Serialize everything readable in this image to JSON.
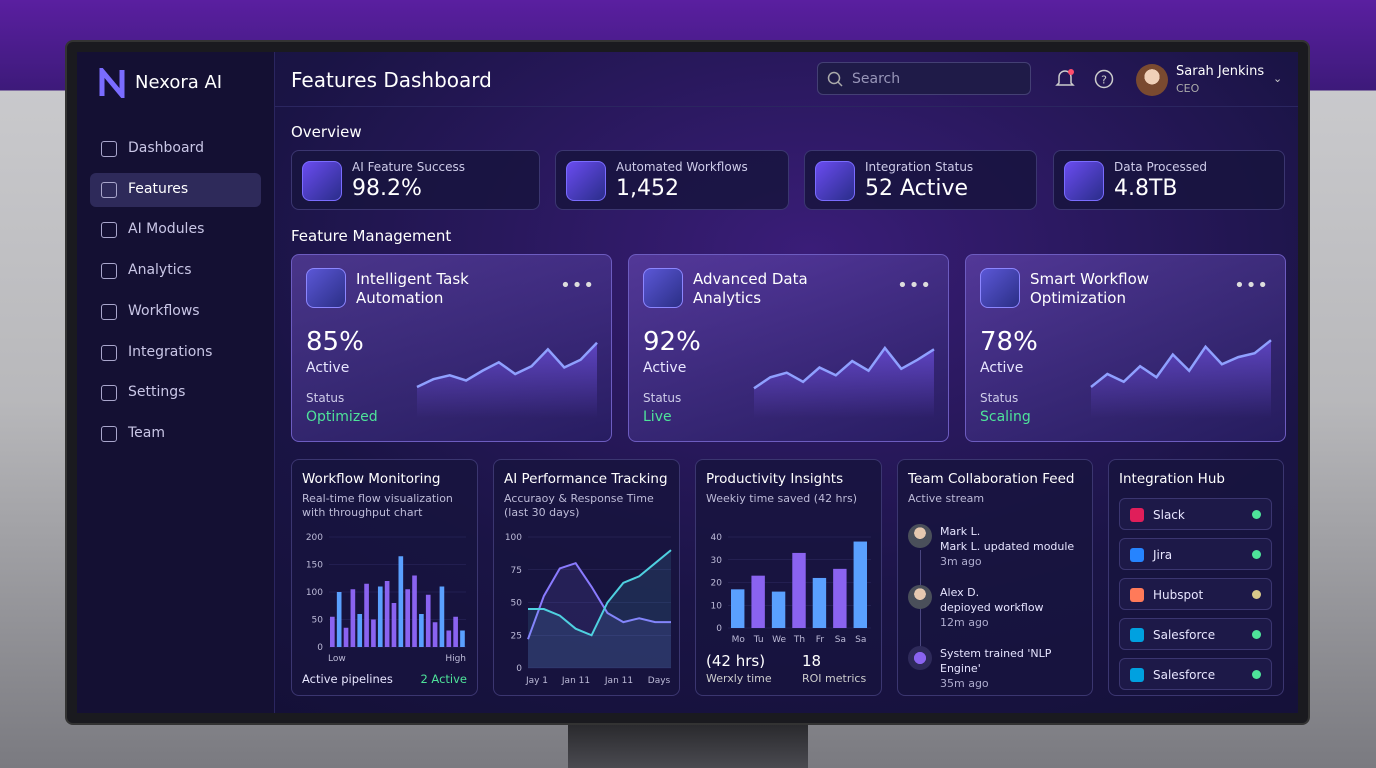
{
  "brand": "Nexora AI",
  "header": {
    "title": "Features Dashboard",
    "search": "Search",
    "user": {
      "name": "Sarah Jenkins",
      "role": "CEO"
    }
  },
  "nav": [
    "Dashboard",
    "Features",
    "AI Modules",
    "Analytics",
    "Workflows",
    "Integrations",
    "Settings",
    "Team"
  ],
  "overview": {
    "title": "Overview",
    "cards": [
      {
        "label": "AI Feature Success",
        "value": "98.2%"
      },
      {
        "label": "Automated Workflows",
        "value": "1,452"
      },
      {
        "label": "Integration Status",
        "value": "52 Active"
      },
      {
        "label": "Data Processed",
        "value": "4.8TB"
      }
    ]
  },
  "features": {
    "title": "Feature Management",
    "ylim": [
      0,
      100
    ],
    "cards": [
      {
        "title": "Intelligent Task Automation",
        "percent": "85%",
        "state": "Active",
        "status_label": "Status",
        "status": "Optimized",
        "trend": [
          20,
          32,
          38,
          30,
          45,
          58,
          40,
          52,
          78,
          50,
          62,
          88
        ]
      },
      {
        "title": "Advanced Data Analytics",
        "percent": "92%",
        "state": "Active",
        "status_label": "Status",
        "status": "Live",
        "trend": [
          18,
          35,
          42,
          28,
          50,
          38,
          60,
          45,
          80,
          48,
          62,
          78
        ]
      },
      {
        "title": "Smart Workflow Optimization",
        "percent": "78%",
        "state": "Active",
        "status_label": "Status",
        "status": "Scaling",
        "trend": [
          20,
          40,
          28,
          52,
          35,
          70,
          45,
          82,
          55,
          66,
          72,
          92
        ]
      }
    ]
  },
  "workflow": {
    "title": "Workflow Monitoring",
    "subtitle": "Real-time flow visualization with throughput chart",
    "ylim": [
      0,
      200
    ],
    "yticks": [
      0,
      50,
      100,
      150,
      200
    ],
    "values": [
      55,
      100,
      35,
      105,
      60,
      115,
      50,
      110,
      120,
      80,
      165,
      105,
      130,
      60,
      95,
      45,
      110,
      30,
      55,
      30
    ],
    "x_labels": [
      "Low",
      "High"
    ],
    "footer_label": "Active pipelines",
    "footer_value": "2 Active"
  },
  "performance": {
    "title": "AI Performance Tracking",
    "subtitle": "Accuraoy & Response Time (last 30 days)",
    "ylim": [
      0,
      100
    ],
    "yticks": [
      0,
      25,
      50,
      75,
      100
    ],
    "x_labels": [
      "Jay 1",
      "Jan 11",
      "Jan 11",
      "Days"
    ],
    "series": [
      {
        "color": "#8a7bff",
        "values": [
          22,
          55,
          76,
          80,
          62,
          42,
          35,
          38,
          35,
          35
        ]
      },
      {
        "color": "#4fd1e0",
        "values": [
          45,
          45,
          40,
          30,
          25,
          50,
          65,
          70,
          80,
          90
        ]
      }
    ]
  },
  "productivity": {
    "title": "Productivity Insights",
    "subtitle": "Weekiy time saved (42 hrs)",
    "ylim": [
      0,
      40
    ],
    "yticks": [
      0,
      10,
      20,
      30,
      40
    ],
    "categories": [
      "Mo",
      "Tu",
      "We",
      "Th",
      "Fr",
      "Sa",
      "Sa"
    ],
    "values": [
      17,
      23,
      16,
      33,
      22,
      26,
      38
    ],
    "stat1": "(42 hrs)",
    "stat1_label": "Werxly time",
    "stat2": 18,
    "stat2_label": "ROI metrics"
  },
  "team": {
    "title": "Team Collaboration Feed",
    "subtitle": "Active stream",
    "items": [
      {
        "name": "Mark L.",
        "text": "Mark L. updated module",
        "time": "3m ago"
      },
      {
        "name": "Alex D.",
        "text": "depioyed workflow",
        "time": "12m ago"
      },
      {
        "text": "System trained 'NLP Engine'",
        "time": "35m ago"
      }
    ]
  },
  "integrations": {
    "title": "Integration Hub",
    "items": [
      "Slack",
      "Jira",
      "Hubspot",
      "Salesforce",
      "Salesforce"
    ]
  }
}
